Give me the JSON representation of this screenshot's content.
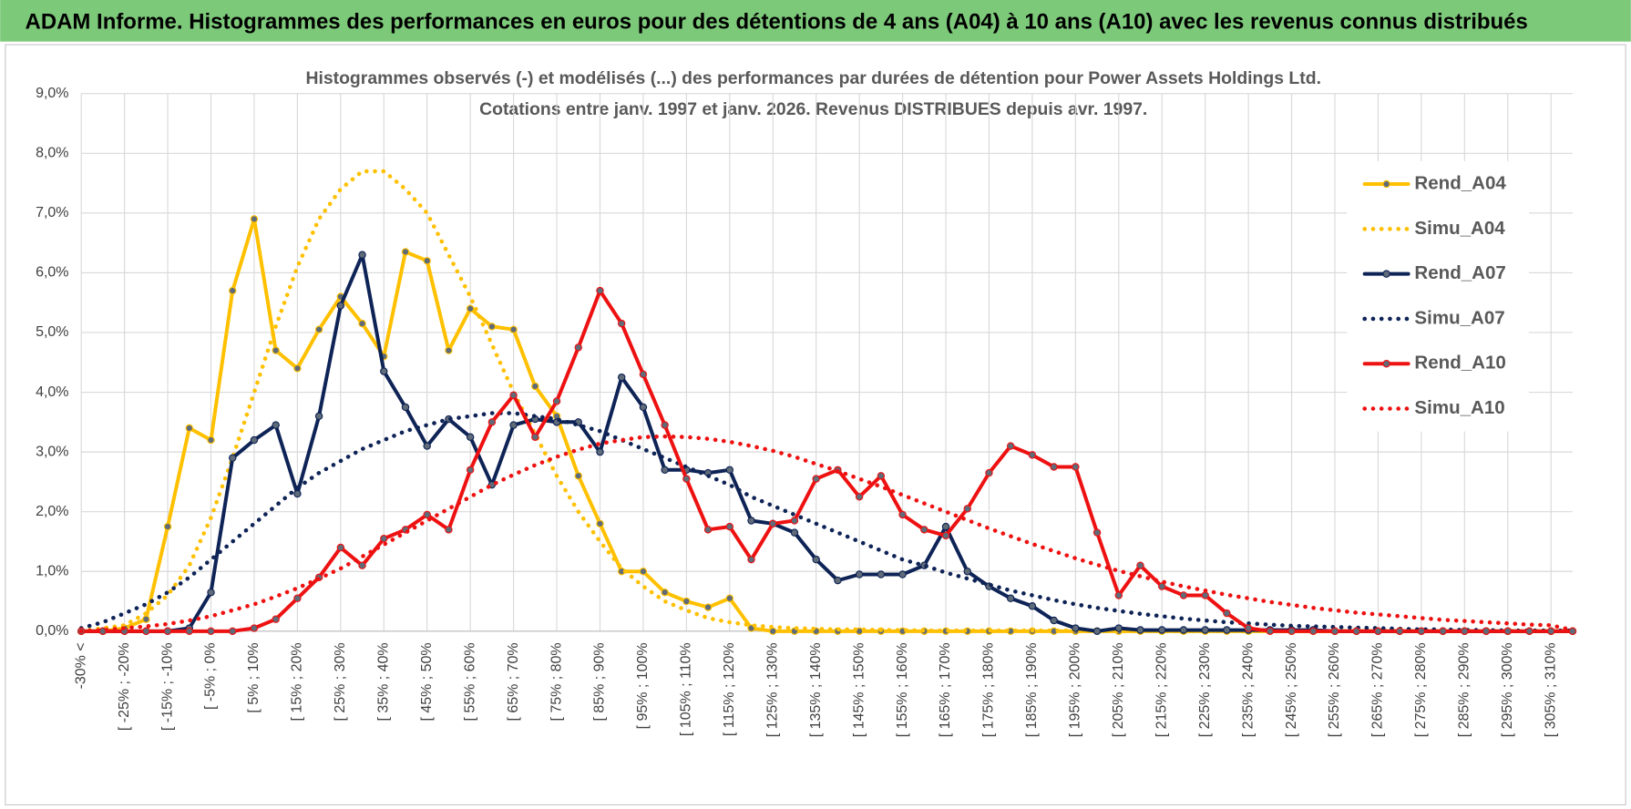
{
  "header": {
    "title": "ADAM Informe. Histogrammes des performances en euros pour des détentions de 4 ans (A04) à 10 ans (A10) avec les revenus connus distribués"
  },
  "chart_data": {
    "type": "line",
    "title": "Histogrammes observés (-) et modélisés (...) des performances par durées de détention pour Power Assets Holdings Ltd.",
    "subtitle": "Cotations entre janv. 1997 et janv. 2026. Revenus DISTRIBUES depuis avr. 1997.",
    "categories": [
      "-30% <",
      null,
      "[ -25% ; -20%",
      null,
      "[ -15% ; -10%",
      null,
      "[ -5% ; 0%",
      null,
      "[ 5% ; 10%",
      null,
      "[ 15% ; 20%",
      null,
      "[ 25% ; 30%",
      null,
      "[ 35% ; 40%",
      null,
      "[ 45% ; 50%",
      null,
      "[ 55% ; 60%",
      null,
      "[ 65% ; 70%",
      null,
      "[ 75% ; 80%",
      null,
      "[ 85% ; 90%",
      null,
      "[ 95% ; 100%",
      null,
      "[ 105% ; 110%",
      null,
      "[ 115% ; 120%",
      null,
      "[ 125% ; 130%",
      null,
      "[ 135% ; 140%",
      null,
      "[ 145% ; 150%",
      null,
      "[ 155% ; 160%",
      null,
      "[ 165% ; 170%",
      null,
      "[ 175% ; 180%",
      null,
      "[ 185% ; 190%",
      null,
      "[ 195% ; 200%",
      null,
      "[ 205% ; 210%",
      null,
      "[ 215% ; 220%",
      null,
      "[ 225% ; 230%",
      null,
      "[ 235% ; 240%",
      null,
      "[ 245% ; 250%",
      null,
      "[ 255% ; 260%",
      null,
      "[ 265% ; 270%",
      null,
      "[ 275% ; 280%",
      null,
      "[ 285% ; 290%",
      null,
      "[ 295% ; 300%",
      null,
      "[ 305% ; 310%",
      null
    ],
    "ylim": [
      0,
      9
    ],
    "yticks": [
      {
        "value": 0,
        "label": "0,0%"
      },
      {
        "value": 1,
        "label": "1,0%"
      },
      {
        "value": 2,
        "label": "2,0%"
      },
      {
        "value": 3,
        "label": "3,0%"
      },
      {
        "value": 4,
        "label": "4,0%"
      },
      {
        "value": 5,
        "label": "5,0%"
      },
      {
        "value": 6,
        "label": "6,0%"
      },
      {
        "value": 7,
        "label": "7,0%"
      },
      {
        "value": 8,
        "label": "8,0%"
      },
      {
        "value": 9,
        "label": "9,0%"
      }
    ],
    "grid": true,
    "legend": "right",
    "series": [
      {
        "name": "Rend_A04",
        "color": "#ffc000",
        "line_style": "solid",
        "values": [
          0,
          0,
          0.05,
          0.2,
          1.75,
          3.4,
          3.2,
          5.7,
          6.9,
          4.7,
          4.4,
          5.05,
          5.6,
          5.15,
          4.6,
          6.35,
          6.2,
          4.7,
          5.4,
          5.1,
          5.05,
          4.1,
          3.6,
          2.6,
          1.8,
          1.0,
          1.0,
          0.65,
          0.5,
          0.4,
          0.55,
          0.05,
          0,
          0,
          0,
          0,
          0,
          0,
          0,
          0,
          0,
          0,
          0,
          0,
          0,
          0,
          0,
          0,
          0,
          0,
          0,
          0,
          0,
          0,
          0,
          0,
          0,
          0,
          0,
          0,
          0,
          0,
          0,
          0,
          0,
          0,
          0,
          0,
          0,
          0
        ]
      },
      {
        "name": "Simu_A04",
        "color": "#ffc000",
        "line_style": "dotted",
        "values": [
          0,
          0.05,
          0.1,
          0.3,
          0.6,
          1.1,
          1.9,
          2.9,
          4.0,
          5.1,
          6.1,
          6.9,
          7.4,
          7.7,
          7.7,
          7.4,
          7.0,
          6.3,
          5.6,
          4.8,
          4.0,
          3.3,
          2.6,
          2.0,
          1.5,
          1.05,
          0.75,
          0.5,
          0.35,
          0.22,
          0.15,
          0.1,
          0.07,
          0.05,
          0.04,
          0.03,
          0.03,
          0.02,
          0.02,
          0.01,
          0.01,
          0.01,
          0.01,
          0.01,
          0.01,
          0.01,
          0.01,
          0,
          0,
          0,
          0,
          0,
          0,
          0,
          0,
          0,
          0,
          0,
          0,
          0,
          0,
          0,
          0,
          0,
          0,
          0,
          0,
          0,
          0,
          0
        ]
      },
      {
        "name": "Rend_A07",
        "color": "#0e2356",
        "line_style": "solid",
        "values": [
          0,
          0,
          0,
          0,
          0,
          0.05,
          0.65,
          2.9,
          3.2,
          3.45,
          2.3,
          3.6,
          5.45,
          6.3,
          4.35,
          3.75,
          3.1,
          3.55,
          3.25,
          2.45,
          3.45,
          3.55,
          3.5,
          3.5,
          3.0,
          4.25,
          3.75,
          2.7,
          2.7,
          2.65,
          2.7,
          1.85,
          1.8,
          1.65,
          1.2,
          0.85,
          0.95,
          0.95,
          0.95,
          1.1,
          1.75,
          1.0,
          0.75,
          0.55,
          0.42,
          0.18,
          0.05,
          0,
          0.05,
          0.02,
          0.02,
          0.02,
          0.02,
          0.02,
          0.02,
          0.02,
          0.02,
          0.02,
          0,
          0,
          0,
          0,
          0,
          0,
          0,
          0,
          0,
          0,
          0,
          0
        ]
      },
      {
        "name": "Simu_A07",
        "color": "#0e2356",
        "line_style": "dotted",
        "values": [
          0.05,
          0.15,
          0.3,
          0.45,
          0.65,
          0.9,
          1.2,
          1.5,
          1.8,
          2.1,
          2.4,
          2.65,
          2.85,
          3.05,
          3.2,
          3.35,
          3.45,
          3.55,
          3.6,
          3.65,
          3.65,
          3.6,
          3.55,
          3.45,
          3.35,
          3.2,
          3.05,
          2.9,
          2.75,
          2.6,
          2.45,
          2.25,
          2.1,
          1.95,
          1.8,
          1.65,
          1.5,
          1.35,
          1.2,
          1.1,
          0.98,
          0.88,
          0.78,
          0.68,
          0.6,
          0.52,
          0.45,
          0.39,
          0.34,
          0.29,
          0.25,
          0.21,
          0.18,
          0.15,
          0.13,
          0.11,
          0.09,
          0.08,
          0.07,
          0.06,
          0.05,
          0.04,
          0.03,
          0.03,
          0.02,
          0.02,
          0.01,
          0.01,
          0.01,
          0.01
        ]
      },
      {
        "name": "Rend_A10",
        "color": "#ee1111",
        "line_style": "solid",
        "values": [
          0,
          0,
          0,
          0,
          0,
          0,
          0,
          0,
          0.05,
          0.2,
          0.55,
          0.9,
          1.4,
          1.1,
          1.55,
          1.7,
          1.95,
          1.7,
          2.7,
          3.5,
          3.95,
          3.25,
          3.85,
          4.75,
          5.7,
          5.15,
          4.3,
          3.45,
          2.55,
          1.7,
          1.75,
          1.2,
          1.8,
          1.85,
          2.55,
          2.7,
          2.25,
          2.6,
          1.95,
          1.7,
          1.6,
          2.05,
          2.65,
          3.1,
          2.95,
          2.75,
          2.75,
          1.65,
          0.6,
          1.1,
          0.75,
          0.6,
          0.6,
          0.3,
          0.05,
          0,
          0,
          0,
          0,
          0,
          0,
          0,
          0,
          0,
          0,
          0,
          0,
          0,
          0,
          0
        ]
      },
      {
        "name": "Simu_A10",
        "color": "#ee1111",
        "line_style": "dotted",
        "values": [
          0,
          0.02,
          0.05,
          0.08,
          0.12,
          0.18,
          0.25,
          0.35,
          0.45,
          0.58,
          0.72,
          0.88,
          1.05,
          1.25,
          1.45,
          1.65,
          1.85,
          2.05,
          2.25,
          2.45,
          2.62,
          2.78,
          2.92,
          3.04,
          3.14,
          3.2,
          3.25,
          3.26,
          3.25,
          3.22,
          3.17,
          3.1,
          3.02,
          2.92,
          2.8,
          2.68,
          2.55,
          2.42,
          2.28,
          2.14,
          2.0,
          1.86,
          1.72,
          1.59,
          1.46,
          1.34,
          1.22,
          1.11,
          1.01,
          0.92,
          0.83,
          0.75,
          0.68,
          0.61,
          0.55,
          0.49,
          0.44,
          0.39,
          0.35,
          0.31,
          0.28,
          0.25,
          0.22,
          0.19,
          0.17,
          0.15,
          0.13,
          0.11,
          0.1,
          0.02
        ]
      }
    ]
  }
}
